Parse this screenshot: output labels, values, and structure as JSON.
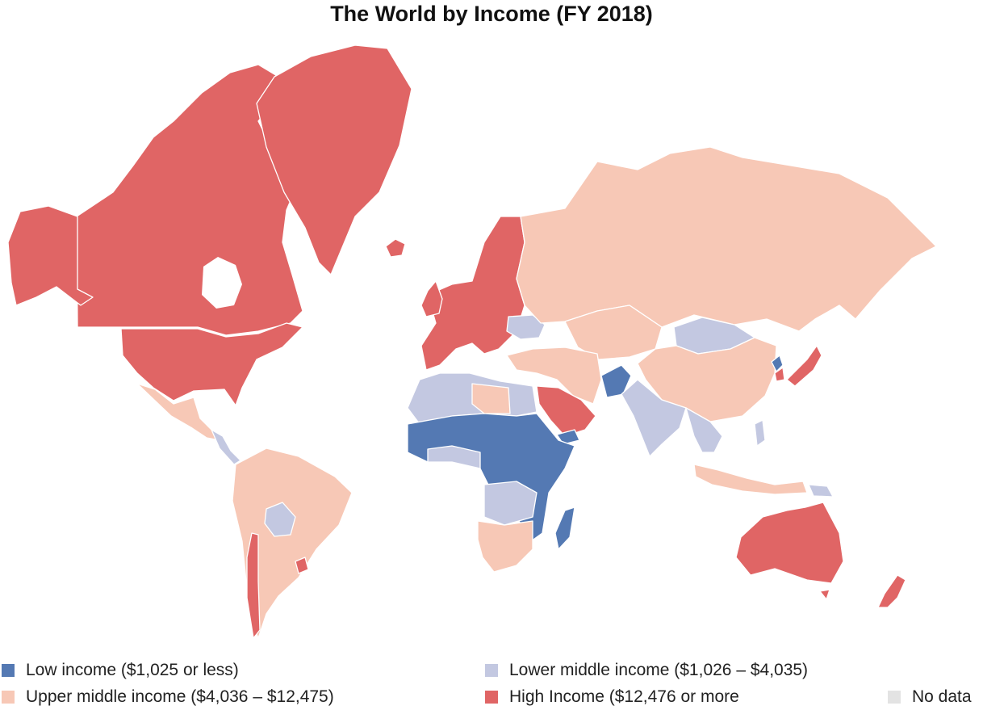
{
  "title": "The World by Income (FY 2018)",
  "colors": {
    "low": "#5479b3",
    "lower_middle": "#c3c8e1",
    "upper_middle": "#f7c8b6",
    "high": "#e06565",
    "no_data": "#e3e3e3"
  },
  "legend": {
    "low": "Low income ($1,025 or less)",
    "lower_middle": "Lower middle income ($1,026 – $4,035)",
    "upper_middle": "Upper middle income ($4,036 – $12,475)",
    "high": "High Income ($12,476 or more",
    "no_data": "No data"
  }
}
